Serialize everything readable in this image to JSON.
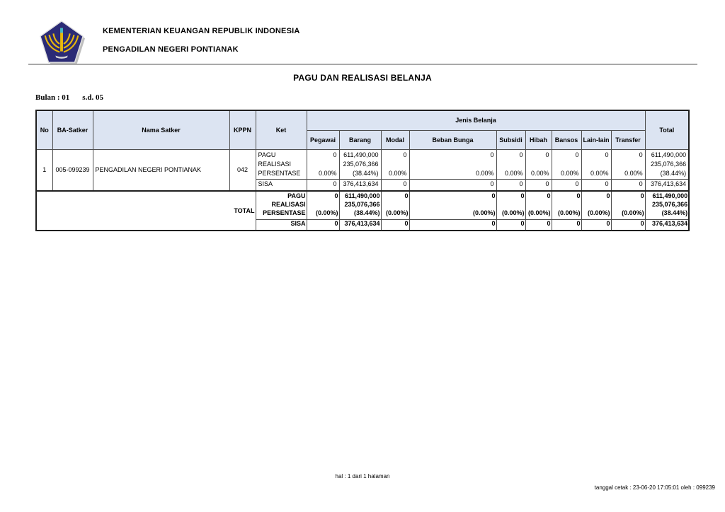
{
  "page": {
    "org_line1": "KEMENTERIAN KEUANGAN REPUBLIK INDONESIA",
    "org_line2": "PENGADILAN NEGERI PONTIANAK",
    "title": "PAGU DAN REALISASI BELANJA",
    "period_label": "Bulan : 01",
    "period_range": "s.d. 05",
    "colors": {
      "header_fill": "#dce4f2",
      "border": "#4d4d4d",
      "logo_navy": "#2b2b76",
      "logo_gold": "#e8b80c",
      "logo_teal": "#3db7c9"
    }
  },
  "table": {
    "group_header": "Jenis Belanja",
    "columns": [
      "No",
      "BA-Satker",
      "Nama Satker",
      "KPPN",
      "Ket",
      "Pegawai",
      "Barang",
      "Modal",
      "Beban Bunga",
      "Subsidi",
      "Hibah",
      "Bansos",
      "Lain-lain",
      "Transfer",
      "Total"
    ],
    "row1": {
      "no": "1",
      "ba_satker": "005-099239",
      "nama_satker": "PENGADILAN NEGERI PONTIANAK",
      "kppn": "042",
      "ket": [
        "PAGU",
        "REALISASI",
        "PERSENTASE"
      ],
      "ket_sisa": "SISA",
      "pegawai": [
        "0",
        "",
        "0.00%"
      ],
      "barang": [
        "611,490,000",
        "235,076,366",
        "(38.44%)"
      ],
      "modal": [
        "0",
        "",
        "0.00%"
      ],
      "beban_bunga": [
        "0",
        "",
        "0.00%"
      ],
      "subsidi": [
        "0",
        "",
        "0.00%"
      ],
      "hibah": [
        "0",
        "",
        "0.00%"
      ],
      "bansos": [
        "0",
        "",
        "0.00%"
      ],
      "lain_lain": [
        "0",
        "",
        "0.00%"
      ],
      "transfer": [
        "0",
        "",
        "0.00%"
      ],
      "total": [
        "611,490,000",
        "235,076,366",
        "(38.44%)"
      ],
      "sisa": {
        "pegawai": "0",
        "barang": "376,413,634",
        "modal": "0",
        "beban_bunga": "0",
        "subsidi": "0",
        "hibah": "0",
        "bansos": "0",
        "lain_lain": "0",
        "transfer": "0",
        "total": "376,413,634"
      }
    },
    "total_row": {
      "label": "TOTAL",
      "ket": [
        "PAGU",
        "REALISASI",
        "PERSENTASE"
      ],
      "ket_sisa": "SISA",
      "pegawai": [
        "0",
        "",
        "(0.00%)"
      ],
      "barang": [
        "611,490,000",
        "235,076,366",
        "(38.44%)"
      ],
      "modal": [
        "0",
        "",
        "(0.00%)"
      ],
      "beban_bunga": [
        "0",
        "",
        "(0.00%)"
      ],
      "subsidi": [
        "0",
        "",
        "(0.00%)"
      ],
      "hibah": [
        "0",
        "",
        "(0.00%)"
      ],
      "bansos": [
        "0",
        "",
        "(0.00%)"
      ],
      "lain_lain": [
        "0",
        "",
        "(0.00%)"
      ],
      "transfer": [
        "0",
        "",
        "(0.00%)"
      ],
      "total": [
        "611,490,000",
        "235,076,366",
        "(38.44%)"
      ],
      "sisa": {
        "pegawai": "0",
        "barang": "376,413,634",
        "modal": "0",
        "beban_bunga": "0",
        "subsidi": "0",
        "hibah": "0",
        "bansos": "0",
        "lain_lain": "0",
        "transfer": "0",
        "total": "376,413,634"
      }
    }
  },
  "footer": {
    "page_info": "hal : 1 dari 1 halaman",
    "print_info": "tanggal cetak : 23-06-20 17:05:01 oleh : 099239"
  }
}
